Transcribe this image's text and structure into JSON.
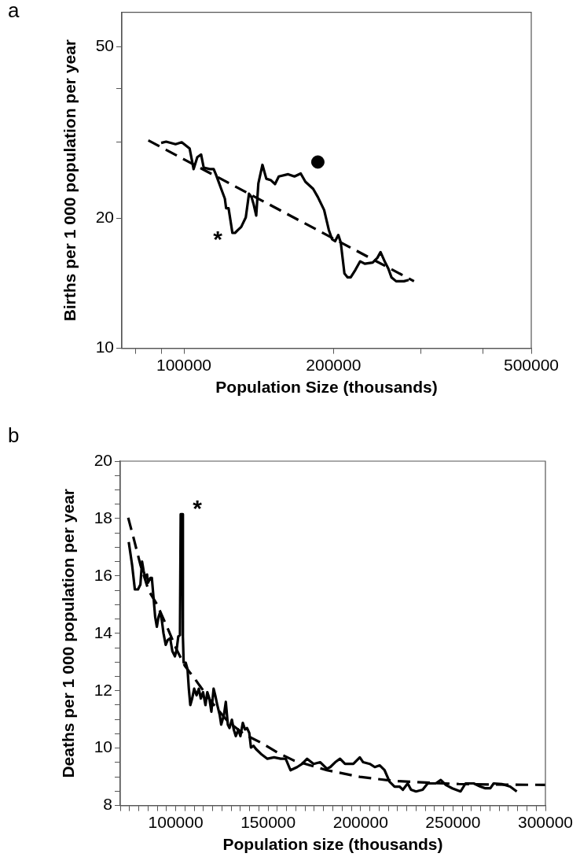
{
  "chart_data": [
    {
      "type": "line",
      "xlabel": "Population Size (thousands)",
      "ylabel": "Births per 1 000 population per year",
      "log": "xy",
      "grid": false,
      "legend": false,
      "xlim": [
        75000,
        500000
      ],
      "ylim": [
        10,
        60
      ],
      "xticks": [
        {
          "value": 80000,
          "label": null
        },
        {
          "value": 90000,
          "label": null
        },
        100000,
        200000,
        {
          "value": 300000,
          "label": null
        },
        {
          "value": 400000,
          "label": null
        },
        500000
      ],
      "yticks": [
        10,
        20,
        {
          "value": 30,
          "label": null
        },
        {
          "value": 40,
          "label": null
        },
        50
      ],
      "annotations": [
        "a",
        "*"
      ],
      "series": [
        {
          "color": "#000000",
          "line_style": "solid",
          "x": [
            90000,
            92100,
            96200,
            99000,
            102700,
            104600,
            106400,
            108300,
            109600,
            112800,
            114800,
            116100,
            118700,
            120900,
            121600,
            123000,
            125200,
            126700,
            128500,
            130400,
            133200,
            135200,
            136800,
            138200,
            139800,
            141200,
            143900,
            146500,
            149700,
            152500,
            155200,
            162100,
            166900,
            171800,
            175600,
            182000,
            186000,
            191500,
            195700,
            198600,
            201500,
            204500,
            206800,
            210400,
            213500,
            216600,
            221400,
            226300,
            231200,
            239800,
            245100,
            248700,
            254100,
            257800,
            261600,
            267300,
            277200,
            283300
          ],
          "values": [
            29.9,
            30.1,
            29.7,
            30.0,
            29.0,
            26.0,
            27.7,
            28.1,
            26.2,
            26.0,
            26.0,
            25.2,
            23.5,
            22.2,
            21.1,
            21.1,
            18.5,
            18.5,
            18.8,
            19.1,
            20.1,
            22.8,
            22.4,
            21.5,
            20.3,
            24.1,
            26.6,
            24.7,
            24.5,
            24.0,
            25.0,
            25.3,
            25.0,
            25.4,
            24.3,
            23.4,
            22.4,
            20.9,
            18.8,
            17.9,
            17.7,
            18.3,
            17.6,
            14.9,
            14.6,
            14.6,
            15.2,
            15.9,
            15.7,
            15.8,
            16.2,
            16.7,
            15.8,
            15.3,
            14.6,
            14.3,
            14.3,
            14.4
          ]
        },
        {
          "color": "#000000",
          "line_style": "dashed",
          "x": [
            84800,
            290400
          ],
          "values": [
            30.3,
            14.3
          ]
        },
        {
          "type": "scatter",
          "color": "#000000",
          "marker": "circle",
          "x": [
            186000
          ],
          "values": [
            27.0
          ]
        }
      ]
    },
    {
      "type": "line",
      "xlabel": "Population size (thousands)",
      "ylabel": "Deaths per 1 000 population per year",
      "grid": false,
      "legend": false,
      "xlim": [
        70000,
        300000
      ],
      "ylim": [
        8,
        20
      ],
      "xticks": [
        {
          "value": 70000,
          "label": null
        },
        {
          "value": 75000,
          "label": null
        },
        {
          "value": 80000,
          "label": null
        },
        {
          "value": 85000,
          "label": null
        },
        {
          "value": 90000,
          "label": null
        },
        {
          "value": 95000,
          "label": null
        },
        100000,
        {
          "value": 105000,
          "label": null
        },
        {
          "value": 110000,
          "label": null
        },
        {
          "value": 115000,
          "label": null
        },
        {
          "value": 120000,
          "label": null
        },
        {
          "value": 125000,
          "label": null
        },
        {
          "value": 130000,
          "label": null
        },
        {
          "value": 135000,
          "label": null
        },
        {
          "value": 140000,
          "label": null
        },
        {
          "value": 145000,
          "label": null
        },
        150000,
        {
          "value": 155000,
          "label": null
        },
        {
          "value": 160000,
          "label": null
        },
        {
          "value": 165000,
          "label": null
        },
        {
          "value": 170000,
          "label": null
        },
        {
          "value": 175000,
          "label": null
        },
        {
          "value": 180000,
          "label": null
        },
        {
          "value": 185000,
          "label": null
        },
        {
          "value": 190000,
          "label": null
        },
        {
          "value": 195000,
          "label": null
        },
        200000,
        {
          "value": 205000,
          "label": null
        },
        {
          "value": 210000,
          "label": null
        },
        {
          "value": 215000,
          "label": null
        },
        {
          "value": 220000,
          "label": null
        },
        {
          "value": 225000,
          "label": null
        },
        {
          "value": 230000,
          "label": null
        },
        {
          "value": 235000,
          "label": null
        },
        {
          "value": 240000,
          "label": null
        },
        {
          "value": 245000,
          "label": null
        },
        250000,
        {
          "value": 255000,
          "label": null
        },
        {
          "value": 260000,
          "label": null
        },
        {
          "value": 265000,
          "label": null
        },
        {
          "value": 270000,
          "label": null
        },
        {
          "value": 275000,
          "label": null
        },
        {
          "value": 280000,
          "label": null
        },
        {
          "value": 285000,
          "label": null
        },
        {
          "value": 290000,
          "label": null
        },
        {
          "value": 295000,
          "label": null
        },
        300000
      ],
      "yticks": [
        8,
        {
          "value": 8.5,
          "label": null
        },
        {
          "value": 9,
          "label": null
        },
        {
          "value": 9.5,
          "label": null
        },
        10,
        {
          "value": 10.5,
          "label": null
        },
        {
          "value": 11,
          "label": null
        },
        {
          "value": 11.5,
          "label": null
        },
        12,
        {
          "value": 12.5,
          "label": null
        },
        {
          "value": 13,
          "label": null
        },
        {
          "value": 13.5,
          "label": null
        },
        14,
        {
          "value": 14.5,
          "label": null
        },
        {
          "value": 15,
          "label": null
        },
        {
          "value": 15.5,
          "label": null
        },
        16,
        {
          "value": 16.5,
          "label": null
        },
        {
          "value": 17,
          "label": null
        },
        {
          "value": 17.5,
          "label": null
        },
        18,
        {
          "value": 18.5,
          "label": null
        },
        {
          "value": 19,
          "label": null
        },
        {
          "value": 19.5,
          "label": null
        },
        20
      ],
      "annotations": [
        "b",
        "*"
      ],
      "series": [
        {
          "color": "#000000",
          "line_style": "solid",
          "x": [
            74600,
            76400,
            77900,
            79600,
            80900,
            81800,
            82700,
            83600,
            84500,
            85000,
            86300,
            87100,
            88000,
            88900,
            89800,
            90700,
            91600,
            92500,
            93400,
            94600,
            95700,
            97000,
            98200,
            99600,
            100500,
            101400,
            102300,
            102700,
            103600,
            103900,
            104300,
            105400,
            106400,
            107100,
            107900,
            108900,
            110000,
            111300,
            112500,
            113600,
            114800,
            116100,
            117100,
            118200,
            119300,
            120500,
            121400,
            122500,
            123800,
            124600,
            126100,
            127100,
            128200,
            129100,
            130400,
            131400,
            132500,
            133900,
            135000,
            136300,
            137500,
            138600,
            139800,
            140700,
            142100,
            143400,
            146100,
            149600,
            153200,
            156800,
            159500,
            162100,
            165700,
            168400,
            171100,
            174600,
            178200,
            181800,
            183600,
            186300,
            188900,
            191600,
            196100,
            199600,
            201400,
            205000,
            207700,
            210400,
            213000,
            215700,
            218400,
            221100,
            222900,
            225500,
            227300,
            230000,
            233600,
            236300,
            240700,
            243400,
            246100,
            249600,
            254100,
            256800,
            261200,
            264800,
            267500,
            270200,
            272000,
            276400,
            280900,
            284500
          ],
          "values": [
            17.18,
            16.39,
            15.53,
            15.53,
            15.7,
            16.5,
            16.16,
            15.93,
            16.05,
            15.76,
            15.93,
            15.93,
            15.25,
            14.57,
            14.23,
            14.57,
            14.74,
            14.45,
            14.0,
            13.6,
            13.77,
            13.83,
            13.38,
            13.2,
            13.43,
            13.89,
            13.94,
            18.15,
            18.15,
            13.89,
            12.98,
            12.98,
            12.75,
            12.07,
            11.5,
            11.73,
            12.07,
            11.84,
            12.07,
            11.73,
            11.95,
            11.5,
            11.95,
            11.73,
            11.27,
            12.07,
            11.84,
            11.5,
            11.16,
            10.82,
            11.16,
            11.61,
            10.82,
            10.7,
            10.99,
            10.65,
            10.42,
            10.65,
            10.42,
            10.88,
            10.65,
            10.7,
            10.53,
            10.02,
            10.08,
            9.97,
            9.8,
            9.63,
            9.68,
            9.63,
            9.63,
            9.23,
            9.34,
            9.45,
            9.63,
            9.45,
            9.51,
            9.28,
            9.34,
            9.51,
            9.63,
            9.45,
            9.45,
            9.68,
            9.51,
            9.45,
            9.34,
            9.4,
            9.23,
            8.83,
            8.66,
            8.66,
            8.55,
            8.77,
            8.55,
            8.49,
            8.55,
            8.77,
            8.77,
            8.89,
            8.72,
            8.6,
            8.49,
            8.77,
            8.77,
            8.66,
            8.6,
            8.6,
            8.77,
            8.75,
            8.66,
            8.49
          ]
        },
        {
          "color": "#000000",
          "line_style": "dashed",
          "x": [
            74300,
            77300,
            80900,
            85400,
            89800,
            96100,
            100500,
            105000,
            110400,
            119300,
            128200,
            137100,
            146100,
            155000,
            163900,
            181800,
            199600,
            217500,
            235400,
            253200,
            271100,
            300000
          ],
          "values": [
            18.03,
            17.3,
            16.39,
            15.48,
            15.02,
            14.11,
            13.43,
            12.86,
            12.41,
            11.61,
            10.93,
            10.48,
            10.19,
            9.85,
            9.57,
            9.23,
            9.0,
            8.86,
            8.8,
            8.75,
            8.73,
            8.72
          ]
        }
      ]
    }
  ]
}
